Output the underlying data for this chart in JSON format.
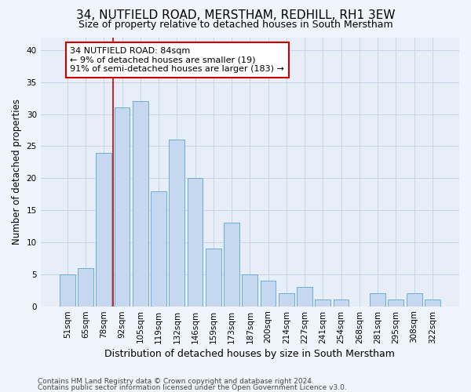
{
  "title1": "34, NUTFIELD ROAD, MERSTHAM, REDHILL, RH1 3EW",
  "title2": "Size of property relative to detached houses in South Merstham",
  "xlabel": "Distribution of detached houses by size in South Merstham",
  "ylabel": "Number of detached properties",
  "categories": [
    "51sqm",
    "65sqm",
    "78sqm",
    "92sqm",
    "105sqm",
    "119sqm",
    "132sqm",
    "146sqm",
    "159sqm",
    "173sqm",
    "187sqm",
    "200sqm",
    "214sqm",
    "227sqm",
    "241sqm",
    "254sqm",
    "268sqm",
    "281sqm",
    "295sqm",
    "308sqm",
    "322sqm"
  ],
  "values": [
    5,
    6,
    24,
    31,
    32,
    18,
    26,
    20,
    9,
    13,
    5,
    4,
    2,
    3,
    1,
    1,
    0,
    2,
    1,
    2,
    1
  ],
  "bar_color": "#c5d8f0",
  "bar_edge_color": "#6aaed6",
  "vline_x": 2.5,
  "vline_color": "#cc0000",
  "annotation_text": "34 NUTFIELD ROAD: 84sqm\n← 9% of detached houses are smaller (19)\n91% of semi-detached houses are larger (183) →",
  "annotation_box_facecolor": "#ffffff",
  "annotation_box_edgecolor": "#cc0000",
  "ylim": [
    0,
    42
  ],
  "yticks": [
    0,
    5,
    10,
    15,
    20,
    25,
    30,
    35,
    40
  ],
  "grid_color": "#c8d4e8",
  "plot_bg_color": "#e8eef8",
  "fig_bg_color": "#f0f4fc",
  "footer1": "Contains HM Land Registry data © Crown copyright and database right 2024.",
  "footer2": "Contains public sector information licensed under the Open Government Licence v3.0.",
  "title1_fontsize": 11,
  "title2_fontsize": 9,
  "xlabel_fontsize": 9,
  "ylabel_fontsize": 8.5,
  "tick_fontsize": 7.5,
  "annotation_fontsize": 8,
  "footer_fontsize": 6.5
}
